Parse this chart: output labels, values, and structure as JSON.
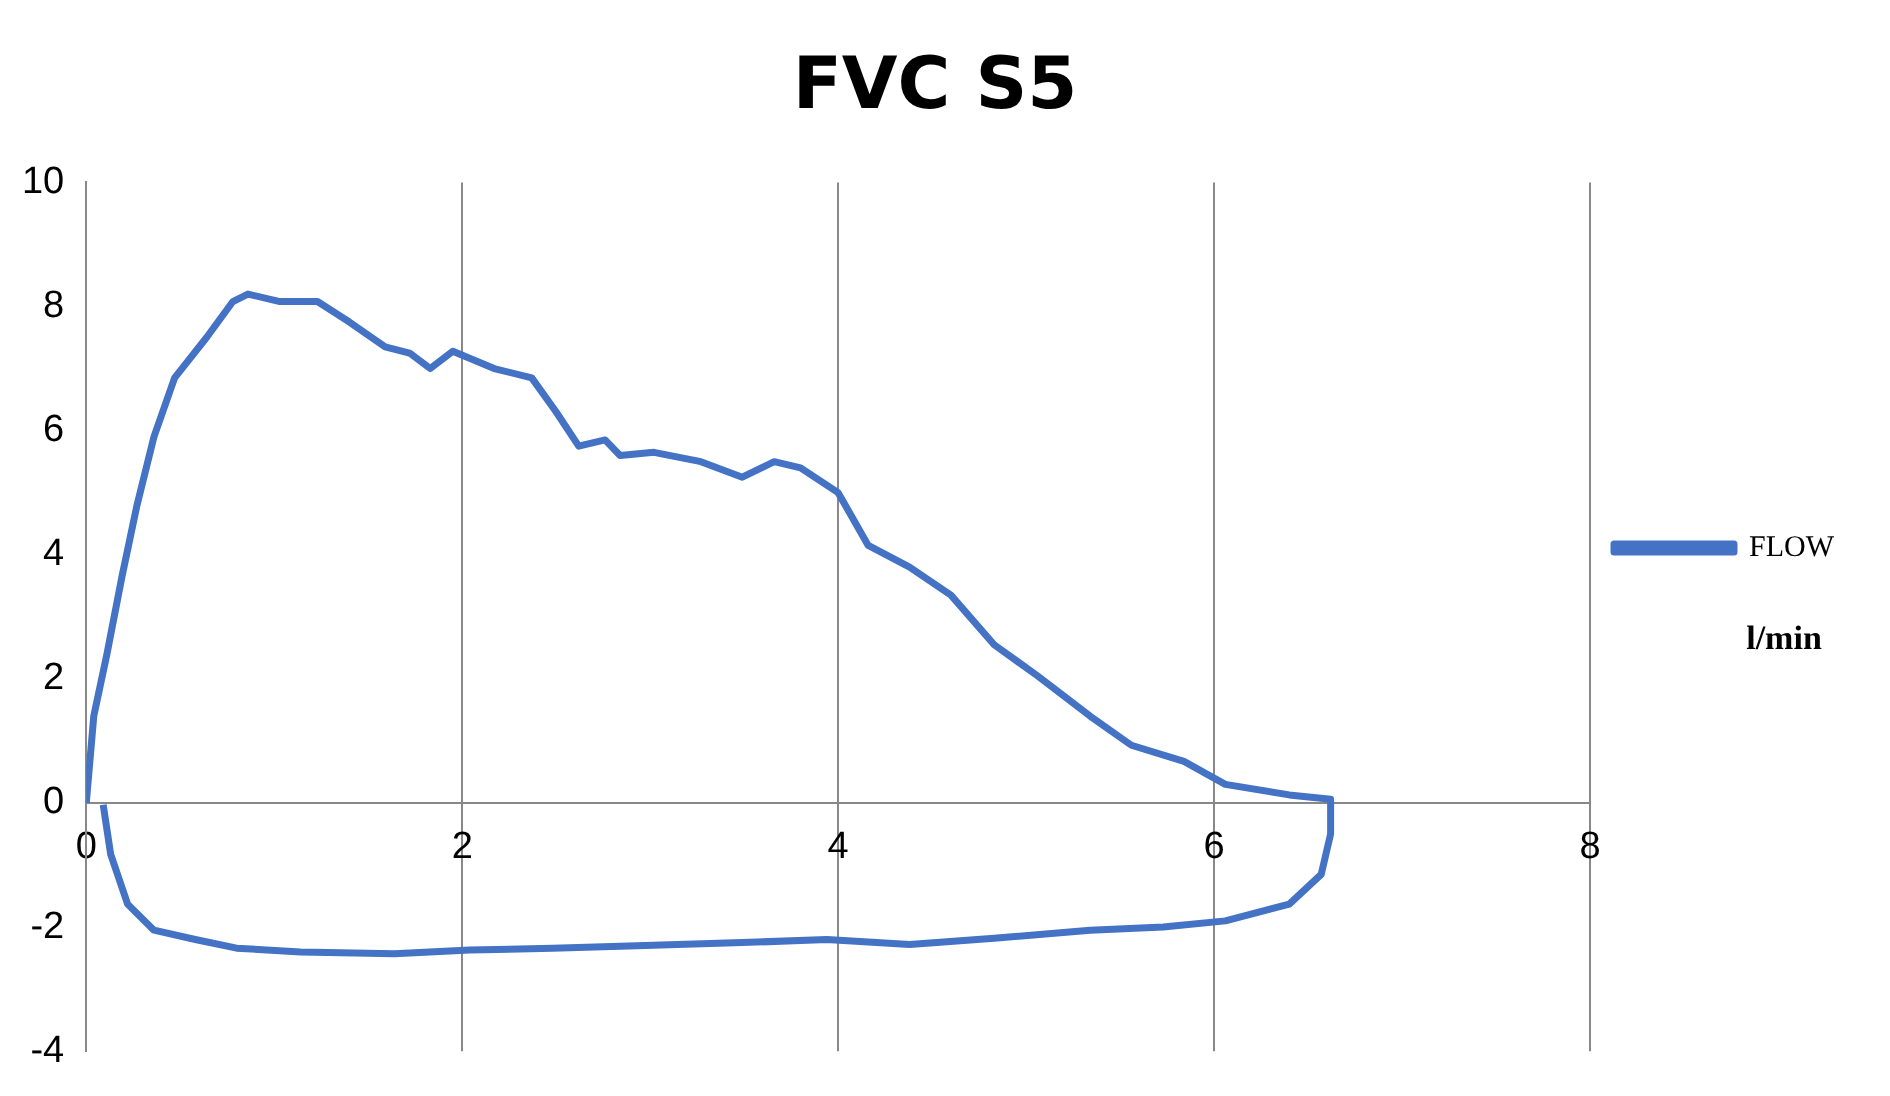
{
  "chart_data": {
    "type": "line",
    "title": "FVC S5",
    "annotations": [
      "l/min"
    ],
    "series": [
      {
        "name": "FLOW",
        "color": "#4472c4",
        "x": [
          0,
          0.04,
          0.11,
          0.19,
          0.27,
          0.36,
          0.47,
          0.64,
          0.78,
          0.86,
          1.03,
          1.23,
          1.4,
          1.59,
          1.72,
          1.83,
          1.95,
          2.17,
          2.37,
          2.5,
          2.62,
          2.76,
          2.84,
          3.02,
          3.27,
          3.49,
          3.66,
          3.8,
          4.0,
          4.16,
          4.38,
          4.6,
          4.83,
          5.06,
          5.34,
          5.56,
          5.84,
          6.06,
          6.4,
          6.62,
          6.62,
          6.57,
          6.4,
          6.06,
          5.73,
          5.34,
          4.83,
          4.38,
          3.94,
          3.49,
          2.93,
          2.48,
          2.04,
          1.64,
          1.14,
          0.8,
          0.58,
          0.36,
          0.22,
          0.13,
          0.09
        ],
        "values": [
          0,
          1.4,
          2.4,
          3.65,
          4.8,
          5.9,
          6.85,
          7.5,
          8.08,
          8.2,
          8.08,
          8.08,
          7.75,
          7.35,
          7.25,
          7.0,
          7.28,
          7.0,
          6.85,
          6.3,
          5.75,
          5.85,
          5.6,
          5.65,
          5.5,
          5.25,
          5.5,
          5.4,
          5.0,
          4.15,
          3.8,
          3.35,
          2.55,
          2.05,
          1.4,
          0.93,
          0.67,
          0.3,
          0.13,
          0.06,
          -0.5,
          -1.15,
          -1.63,
          -1.9,
          -2.0,
          -2.05,
          -2.18,
          -2.28,
          -2.2,
          -2.25,
          -2.3,
          -2.34,
          -2.37,
          -2.43,
          -2.4,
          -2.34,
          -2.2,
          -2.05,
          -1.63,
          -0.83,
          -0.03
        ]
      }
    ],
    "xlim": [
      0,
      8
    ],
    "xticks": [
      0,
      2,
      4,
      6,
      8
    ],
    "ylim": [
      -4,
      10
    ],
    "yticks": [
      -4,
      -2,
      0,
      2,
      4,
      6,
      8,
      10
    ],
    "grid": "x",
    "legend": "right",
    "marker": "none",
    "line_style": "solid"
  }
}
